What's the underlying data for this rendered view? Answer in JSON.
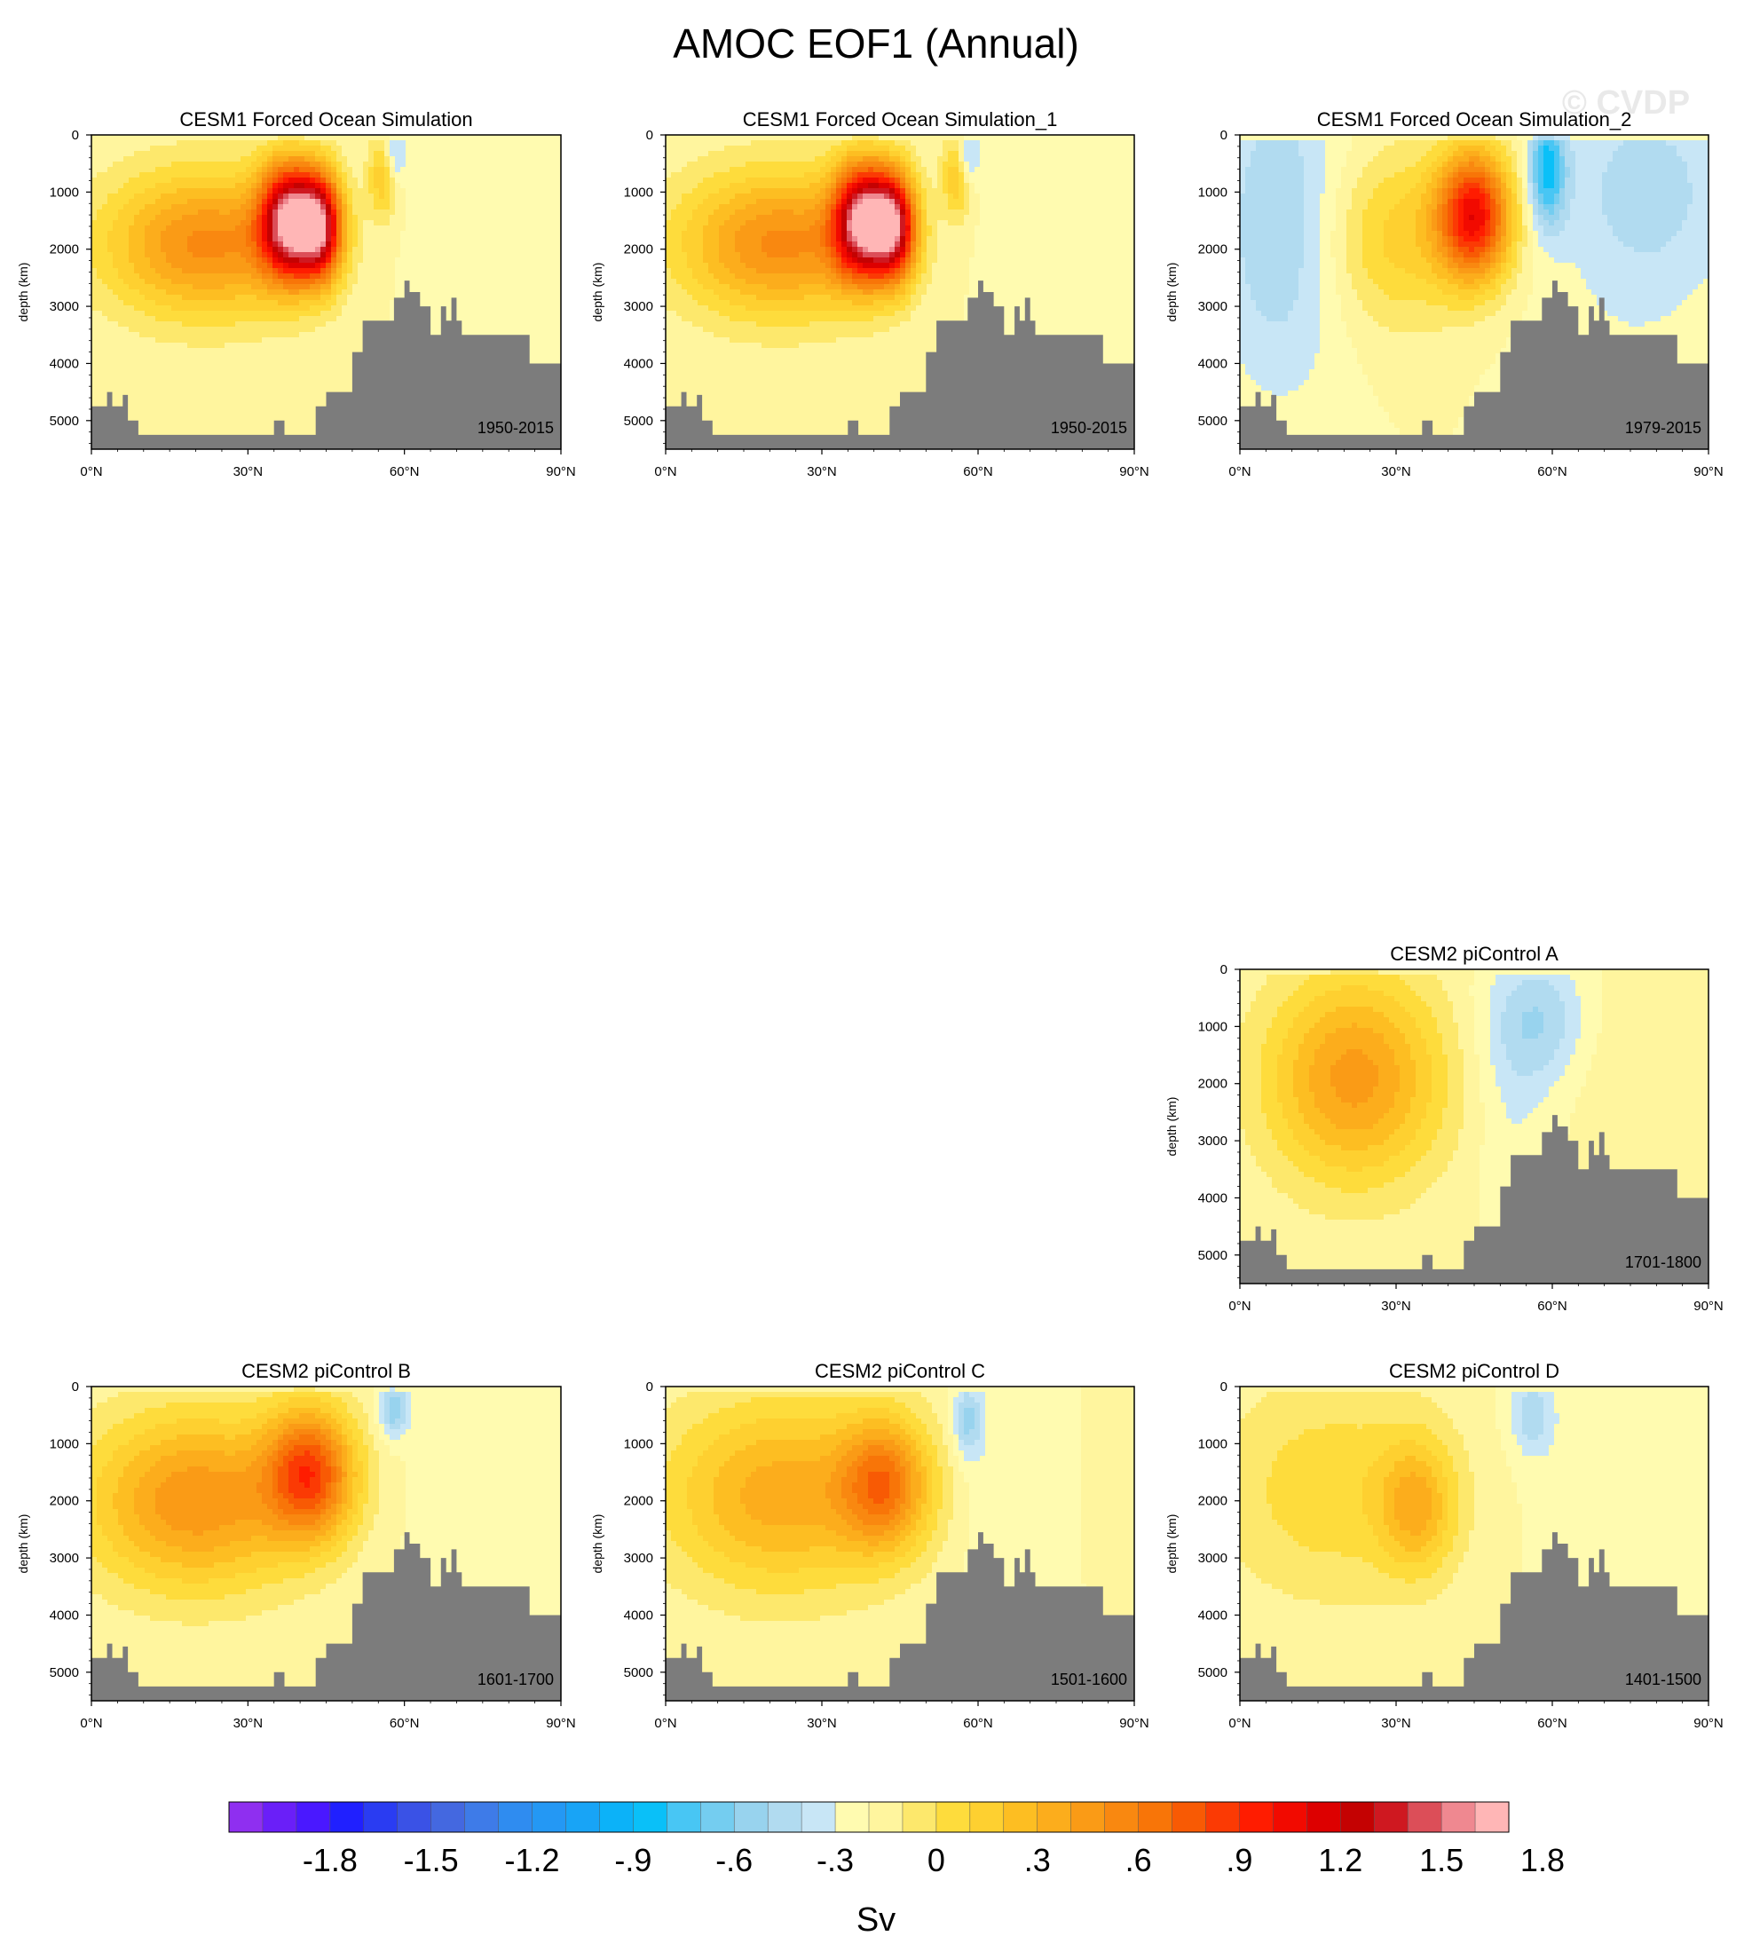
{
  "figure": {
    "title": "AMOC EOF1 (Annual)",
    "watermark": "© CVDP"
  },
  "chart_data": [
    {
      "type": "heatmap",
      "title": "CESM1 Forced Ocean Simulation",
      "period": "1950-2015",
      "ylabel": "depth (km)",
      "xlabel": "",
      "xticks": [
        "0°N",
        "30°N",
        "60°N",
        "90°N"
      ],
      "yticks": [
        "0",
        "1000",
        "2000",
        "3000",
        "4000",
        "5000"
      ],
      "xlim": [
        0,
        90
      ],
      "ylim": [
        0,
        5500
      ],
      "grid": false,
      "features": [
        {
          "lat": 22,
          "depth": 1900,
          "value": 0.85,
          "lat_width": 14,
          "depth_width": 900
        },
        {
          "lat": 38,
          "depth": 1500,
          "value": 1.85,
          "lat_width": 4,
          "depth_width": 700
        },
        {
          "lat": 44,
          "depth": 1600,
          "value": 1.5,
          "lat_width": 3,
          "depth_width": 650
        },
        {
          "lat": 56,
          "depth": 700,
          "value": 0.5,
          "lat_width": 2,
          "depth_width": 500
        },
        {
          "lat": 58,
          "depth": 400,
          "value": -0.4,
          "lat_width": 1.5,
          "depth_width": 350
        },
        {
          "lat": 75,
          "depth": 1500,
          "value": -0.08,
          "lat_width": 12,
          "depth_width": 1500
        }
      ]
    },
    {
      "type": "heatmap",
      "title": "CESM1 Forced Ocean Simulation_1",
      "period": "1950-2015",
      "ylabel": "depth (km)",
      "xlabel": "",
      "xticks": [
        "0°N",
        "30°N",
        "60°N",
        "90°N"
      ],
      "yticks": [
        "0",
        "1000",
        "2000",
        "3000",
        "4000",
        "5000"
      ],
      "xlim": [
        0,
        90
      ],
      "ylim": [
        0,
        5500
      ],
      "grid": false,
      "features": [
        {
          "lat": 22,
          "depth": 1900,
          "value": 0.85,
          "lat_width": 14,
          "depth_width": 900
        },
        {
          "lat": 38,
          "depth": 1500,
          "value": 1.85,
          "lat_width": 4,
          "depth_width": 700
        },
        {
          "lat": 44,
          "depth": 1600,
          "value": 1.5,
          "lat_width": 3,
          "depth_width": 650
        },
        {
          "lat": 56,
          "depth": 700,
          "value": 0.5,
          "lat_width": 2,
          "depth_width": 500
        },
        {
          "lat": 58,
          "depth": 400,
          "value": -0.4,
          "lat_width": 1.5,
          "depth_width": 350
        },
        {
          "lat": 75,
          "depth": 1500,
          "value": -0.08,
          "lat_width": 12,
          "depth_width": 1500
        }
      ]
    },
    {
      "type": "heatmap",
      "title": "CESM1 Forced Ocean Simulation_2",
      "period": "1979-2015",
      "ylabel": "depth (km)",
      "xlabel": "",
      "xticks": [
        "0°N",
        "30°N",
        "60°N",
        "90°N"
      ],
      "yticks": [
        "0",
        "1000",
        "2000",
        "3000",
        "4000",
        "5000"
      ],
      "xlim": [
        0,
        90
      ],
      "ylim": [
        0,
        5500
      ],
      "grid": false,
      "features": [
        {
          "lat": 8,
          "depth": 1600,
          "value": -0.35,
          "lat_width": 9,
          "depth_width": 2000
        },
        {
          "lat": 30,
          "depth": 1800,
          "value": 0.4,
          "lat_width": 10,
          "depth_width": 1100
        },
        {
          "lat": 45,
          "depth": 1400,
          "value": 1.4,
          "lat_width": 5,
          "depth_width": 800
        },
        {
          "lat": 59,
          "depth": 600,
          "value": -0.75,
          "lat_width": 2.5,
          "depth_width": 700
        },
        {
          "lat": 78,
          "depth": 1000,
          "value": -0.3,
          "lat_width": 12,
          "depth_width": 1400
        },
        {
          "lat": 72,
          "depth": 3800,
          "value": -0.05,
          "lat_width": 15,
          "depth_width": 900
        }
      ]
    },
    {
      "type": "heatmap",
      "title": "CESM2 piControl A",
      "period": "1701-1800",
      "ylabel": "depth (km)",
      "xlabel": "",
      "xticks": [
        "0°N",
        "30°N",
        "60°N",
        "90°N"
      ],
      "yticks": [
        "0",
        "1000",
        "2000",
        "3000",
        "4000",
        "5000"
      ],
      "xlim": [
        0,
        90
      ],
      "ylim": [
        0,
        5500
      ],
      "grid": false,
      "features": [
        {
          "lat": 22,
          "depth": 1900,
          "value": 0.75,
          "lat_width": 12,
          "depth_width": 1300
        },
        {
          "lat": 57,
          "depth": 900,
          "value": -0.35,
          "lat_width": 7,
          "depth_width": 800
        },
        {
          "lat": 52,
          "depth": 2500,
          "value": -0.12,
          "lat_width": 5,
          "depth_width": 1200
        },
        {
          "lat": 70,
          "depth": 1500,
          "value": 0.08,
          "lat_width": 6,
          "depth_width": 1200
        }
      ]
    },
    {
      "type": "heatmap",
      "title": "CESM2 piControl B",
      "period": "1601-1700",
      "ylabel": "depth (km)",
      "xlabel": "",
      "xticks": [
        "0°N",
        "30°N",
        "60°N",
        "90°N"
      ],
      "yticks": [
        "0",
        "1000",
        "2000",
        "3000",
        "4000",
        "5000"
      ],
      "xlim": [
        0,
        90
      ],
      "ylim": [
        0,
        5500
      ],
      "grid": false,
      "features": [
        {
          "lat": 20,
          "depth": 2000,
          "value": 0.8,
          "lat_width": 15,
          "depth_width": 1100
        },
        {
          "lat": 42,
          "depth": 1500,
          "value": 1.05,
          "lat_width": 6,
          "depth_width": 800
        },
        {
          "lat": 58,
          "depth": 400,
          "value": -0.45,
          "lat_width": 2,
          "depth_width": 350
        },
        {
          "lat": 70,
          "depth": 2000,
          "value": -0.05,
          "lat_width": 10,
          "depth_width": 1200
        }
      ]
    },
    {
      "type": "heatmap",
      "title": "CESM2 piControl C",
      "period": "1501-1600",
      "ylabel": "depth (km)",
      "xlabel": "",
      "xticks": [
        "0°N",
        "30°N",
        "60°N",
        "90°N"
      ],
      "yticks": [
        "0",
        "1000",
        "2000",
        "3000",
        "4000",
        "5000"
      ],
      "xlim": [
        0,
        90
      ],
      "ylim": [
        0,
        5500
      ],
      "grid": false,
      "features": [
        {
          "lat": 22,
          "depth": 1900,
          "value": 0.65,
          "lat_width": 16,
          "depth_width": 1200
        },
        {
          "lat": 42,
          "depth": 1700,
          "value": 0.8,
          "lat_width": 6,
          "depth_width": 800
        },
        {
          "lat": 58,
          "depth": 600,
          "value": -0.4,
          "lat_width": 2,
          "depth_width": 450
        },
        {
          "lat": 64,
          "depth": 2000,
          "value": -0.12,
          "lat_width": 5,
          "depth_width": 1500
        }
      ]
    },
    {
      "type": "heatmap",
      "title": "CESM2 piControl D",
      "period": "1401-1500",
      "ylabel": "depth (km)",
      "xlabel": "",
      "xticks": [
        "0°N",
        "30°N",
        "60°N",
        "90°N"
      ],
      "yticks": [
        "0",
        "1000",
        "2000",
        "3000",
        "4000",
        "5000"
      ],
      "xlim": [
        0,
        90
      ],
      "ylim": [
        0,
        5500
      ],
      "grid": false,
      "features": [
        {
          "lat": 18,
          "depth": 1800,
          "value": 0.32,
          "lat_width": 16,
          "depth_width": 1400
        },
        {
          "lat": 34,
          "depth": 2100,
          "value": 0.5,
          "lat_width": 5,
          "depth_width": 800
        },
        {
          "lat": 56,
          "depth": 500,
          "value": -0.3,
          "lat_width": 3,
          "depth_width": 500
        },
        {
          "lat": 66,
          "depth": 1800,
          "value": -0.08,
          "lat_width": 8,
          "depth_width": 1400
        }
      ]
    }
  ],
  "colorbar": {
    "label": "Sv",
    "tick_labels": [
      "-1.8",
      "-1.5",
      "-1.2",
      "-.9",
      "-.6",
      "-.3",
      "0",
      ".3",
      ".6",
      ".9",
      "1.2",
      "1.5",
      "1.8"
    ],
    "levels_min": -2.1,
    "levels_max": 2.1,
    "colors": [
      "#8f2ff0",
      "#6a1ff8",
      "#4a18ff",
      "#2020ff",
      "#2a3cf2",
      "#3a52e6",
      "#4468e0",
      "#3e7be8",
      "#2f8cf0",
      "#2498f4",
      "#18a4f6",
      "#0cb2f8",
      "#0ac0f8",
      "#48c6f4",
      "#74cdf0",
      "#98d3ee",
      "#b1dbf0",
      "#c8e6f6",
      "#fffbb0",
      "#fff59e",
      "#fde86c",
      "#fedc3c",
      "#fed030",
      "#fdbe22",
      "#fcad1c",
      "#fa9b16",
      "#f98810",
      "#f87508",
      "#f85a04",
      "#fb3a04",
      "#ff1c00",
      "#f20a00",
      "#dd0000",
      "#c40202",
      "#cf1820",
      "#dc4e58",
      "#ef8890",
      "#ffb6b6"
    ]
  },
  "style": {
    "bathymetry_color": "#7c7c7c",
    "contour_color": "#222222"
  }
}
